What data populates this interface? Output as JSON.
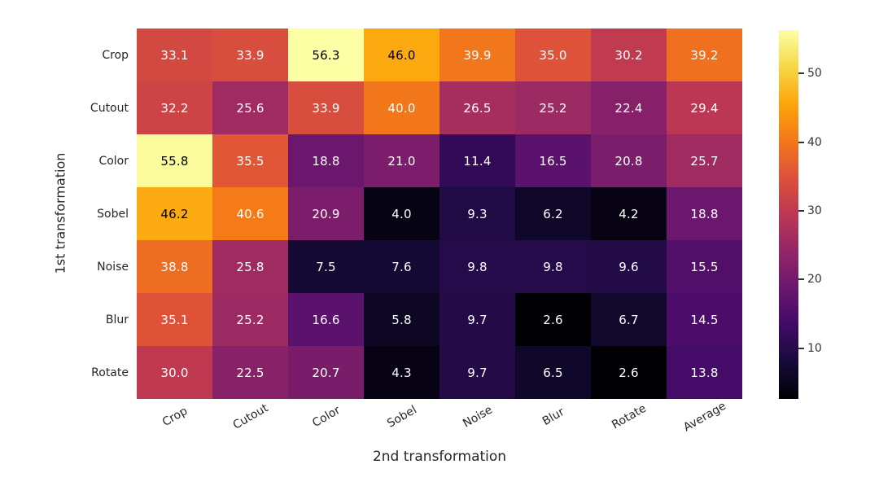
{
  "figure": {
    "background": "#ffffff",
    "axis_text_color": "#262626"
  },
  "chart_data": {
    "type": "heatmap",
    "title": "",
    "xlabel": "2nd transformation",
    "ylabel": "1st transformation",
    "x_categories": [
      "Crop",
      "Cutout",
      "Color",
      "Sobel",
      "Noise",
      "Blur",
      "Rotate",
      "Average"
    ],
    "y_categories": [
      "Crop",
      "Cutout",
      "Color",
      "Sobel",
      "Noise",
      "Blur",
      "Rotate"
    ],
    "values": [
      [
        33.1,
        33.9,
        56.3,
        46.0,
        39.9,
        35.0,
        30.2,
        39.2
      ],
      [
        32.2,
        25.6,
        33.9,
        40.0,
        26.5,
        25.2,
        22.4,
        29.4
      ],
      [
        55.8,
        35.5,
        18.8,
        21.0,
        11.4,
        16.5,
        20.8,
        25.7
      ],
      [
        46.2,
        40.6,
        20.9,
        4.0,
        9.3,
        6.2,
        4.2,
        18.8
      ],
      [
        38.8,
        25.8,
        7.5,
        7.6,
        9.8,
        9.8,
        9.6,
        15.5
      ],
      [
        35.1,
        25.2,
        16.6,
        5.8,
        9.7,
        2.6,
        6.7,
        14.5
      ],
      [
        30.0,
        22.5,
        20.7,
        4.3,
        9.7,
        6.5,
        2.6,
        13.8
      ]
    ],
    "value_decimals": 1,
    "vmin": 2.6,
    "vmax": 56.3,
    "colormap_name": "inferno",
    "colormap_stops": [
      {
        "t": 0.0,
        "color": "#000004"
      },
      {
        "t": 0.1,
        "color": "#160b39"
      },
      {
        "t": 0.2,
        "color": "#420a68"
      },
      {
        "t": 0.3,
        "color": "#6a176e"
      },
      {
        "t": 0.4,
        "color": "#932667"
      },
      {
        "t": 0.5,
        "color": "#bc3754"
      },
      {
        "t": 0.6,
        "color": "#dd513a"
      },
      {
        "t": 0.7,
        "color": "#f37819"
      },
      {
        "t": 0.8,
        "color": "#fca50a"
      },
      {
        "t": 0.9,
        "color": "#f6d746"
      },
      {
        "t": 1.0,
        "color": "#fcffa4"
      }
    ],
    "annotation_light_text": "#ffffff",
    "annotation_dark_text": "#000000",
    "colorbar_ticks": [
      10,
      20,
      30,
      40,
      50
    ],
    "legend_position": "right-colorbar",
    "grid": false
  }
}
